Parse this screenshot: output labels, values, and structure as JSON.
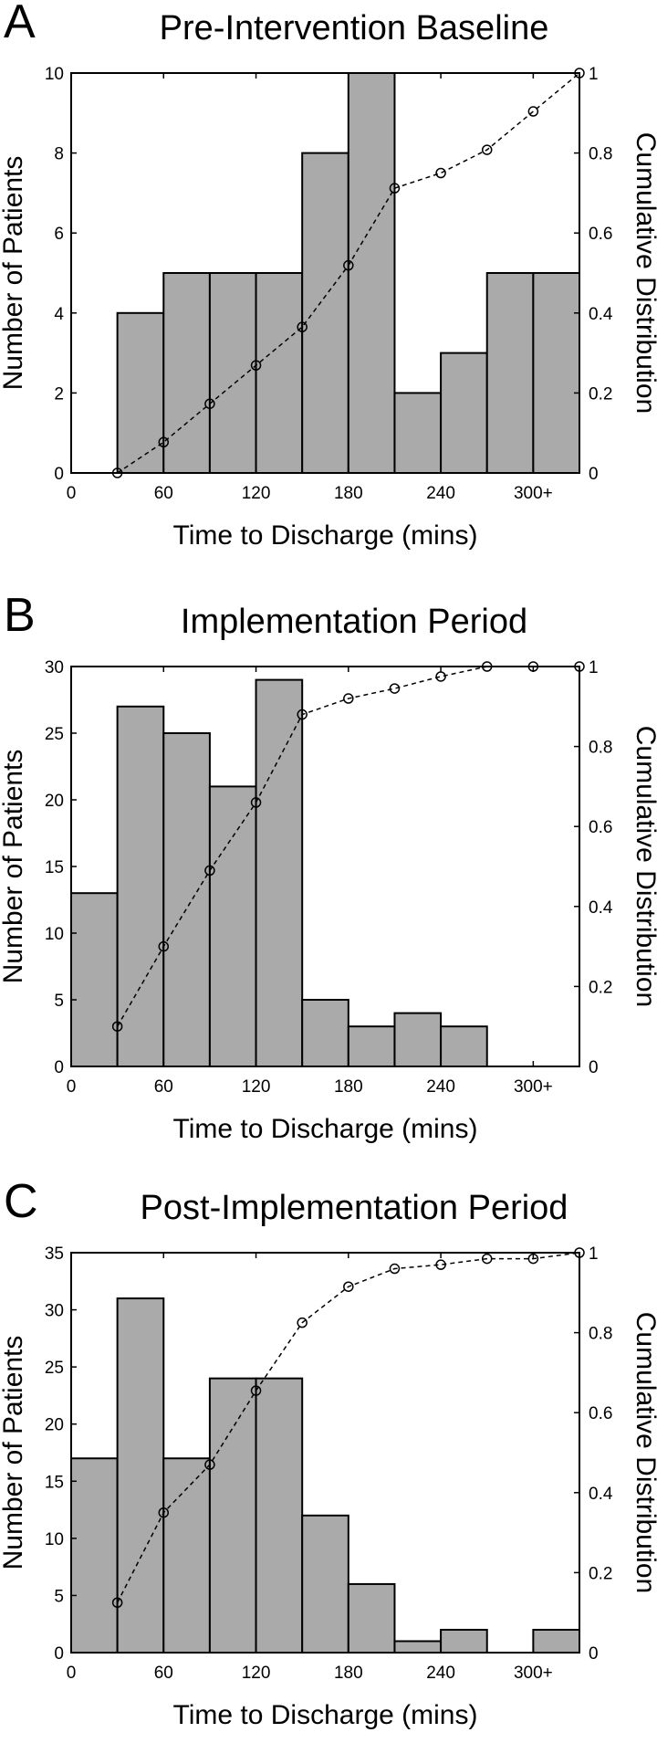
{
  "chart_data": [
    {
      "type": "bar",
      "panel": "A",
      "title": "Pre-Intervention Baseline",
      "xlabel": "Time to Discharge (mins)",
      "ylabel": "Number of Patients",
      "y2label": "Cumulative Distribution",
      "xlim": [
        0,
        330
      ],
      "ylim": [
        0,
        10
      ],
      "y2lim": [
        0,
        1
      ],
      "x_ticks": [
        0,
        60,
        120,
        180,
        240,
        300
      ],
      "x_tick_labels": [
        "0",
        "60",
        "120",
        "180",
        "240",
        "300+"
      ],
      "y_ticks": [
        0,
        2,
        4,
        6,
        8,
        10
      ],
      "y_tick_labels": [
        "0",
        "2",
        "4",
        "6",
        "8",
        "10"
      ],
      "y2_ticks": [
        0,
        0.2,
        0.4,
        0.6,
        0.8,
        1
      ],
      "y2_tick_labels": [
        "0",
        "0.2",
        "0.4",
        "0.6",
        "0.8",
        "1"
      ],
      "bin_width": 30,
      "bin_starts": [
        30,
        60,
        90,
        120,
        150,
        180,
        210,
        240,
        270,
        300
      ],
      "values": [
        4,
        5,
        5,
        5,
        8,
        10,
        2,
        3,
        5,
        5
      ],
      "cumulative_x": [
        30,
        60,
        90,
        120,
        150,
        180,
        210,
        240,
        270,
        300,
        330
      ],
      "cumulative": [
        0,
        0.077,
        0.173,
        0.269,
        0.365,
        0.519,
        0.712,
        0.75,
        0.808,
        0.904,
        1.0
      ],
      "colors": {
        "bar": "#aaaaaa",
        "edge": "#000000",
        "line": "#000000"
      }
    },
    {
      "type": "bar",
      "panel": "B",
      "title": "Implementation Period",
      "xlabel": "Time to Discharge (mins)",
      "ylabel": "Number of Patients",
      "y2label": "Cumulative Distribution",
      "xlim": [
        0,
        330
      ],
      "ylim": [
        0,
        30
      ],
      "y2lim": [
        0,
        1
      ],
      "x_ticks": [
        0,
        60,
        120,
        180,
        240,
        300
      ],
      "x_tick_labels": [
        "0",
        "60",
        "120",
        "180",
        "240",
        "300+"
      ],
      "y_ticks": [
        0,
        5,
        10,
        15,
        20,
        25,
        30
      ],
      "y_tick_labels": [
        "0",
        "5",
        "10",
        "15",
        "20",
        "25",
        "30"
      ],
      "y2_ticks": [
        0,
        0.2,
        0.4,
        0.6,
        0.8,
        1
      ],
      "y2_tick_labels": [
        "0",
        "0.2",
        "0.4",
        "0.6",
        "0.8",
        "1"
      ],
      "bin_width": 30,
      "bin_starts": [
        0,
        30,
        60,
        90,
        120,
        150,
        180,
        210,
        240
      ],
      "values": [
        13,
        27,
        25,
        21,
        29,
        5,
        3,
        4,
        3
      ],
      "cumulative_x": [
        30,
        60,
        90,
        120,
        150,
        180,
        210,
        240,
        270,
        300,
        330
      ],
      "cumulative": [
        0.1,
        0.3,
        0.49,
        0.66,
        0.88,
        0.92,
        0.945,
        0.975,
        1.0,
        1.0,
        1.0
      ],
      "colors": {
        "bar": "#aaaaaa",
        "edge": "#000000",
        "line": "#000000"
      }
    },
    {
      "type": "bar",
      "panel": "C",
      "title": "Post-Implementation Period",
      "xlabel": "Time to Discharge (mins)",
      "ylabel": "Number of Patients",
      "y2label": "Cumulative Distribution",
      "xlim": [
        0,
        330
      ],
      "ylim": [
        0,
        35
      ],
      "y2lim": [
        0,
        1
      ],
      "x_ticks": [
        0,
        60,
        120,
        180,
        240,
        300
      ],
      "x_tick_labels": [
        "0",
        "60",
        "120",
        "180",
        "240",
        "300+"
      ],
      "y_ticks": [
        0,
        5,
        10,
        15,
        20,
        25,
        30,
        35
      ],
      "y_tick_labels": [
        "0",
        "5",
        "10",
        "15",
        "20",
        "25",
        "30",
        "35"
      ],
      "y2_ticks": [
        0,
        0.2,
        0.4,
        0.6,
        0.8,
        1
      ],
      "y2_tick_labels": [
        "0",
        "0.2",
        "0.4",
        "0.6",
        "0.8",
        "1"
      ],
      "bin_width": 30,
      "bin_starts": [
        0,
        30,
        60,
        90,
        120,
        150,
        180,
        210,
        240,
        270,
        300
      ],
      "values": [
        17,
        31,
        17,
        24,
        24,
        12,
        6,
        1,
        2,
        0,
        2
      ],
      "cumulative_x": [
        30,
        60,
        90,
        120,
        150,
        180,
        210,
        240,
        270,
        300,
        330
      ],
      "cumulative": [
        0.125,
        0.35,
        0.47,
        0.655,
        0.825,
        0.915,
        0.96,
        0.97,
        0.985,
        0.985,
        1.0
      ],
      "colors": {
        "bar": "#aaaaaa",
        "edge": "#000000",
        "line": "#000000"
      }
    }
  ]
}
